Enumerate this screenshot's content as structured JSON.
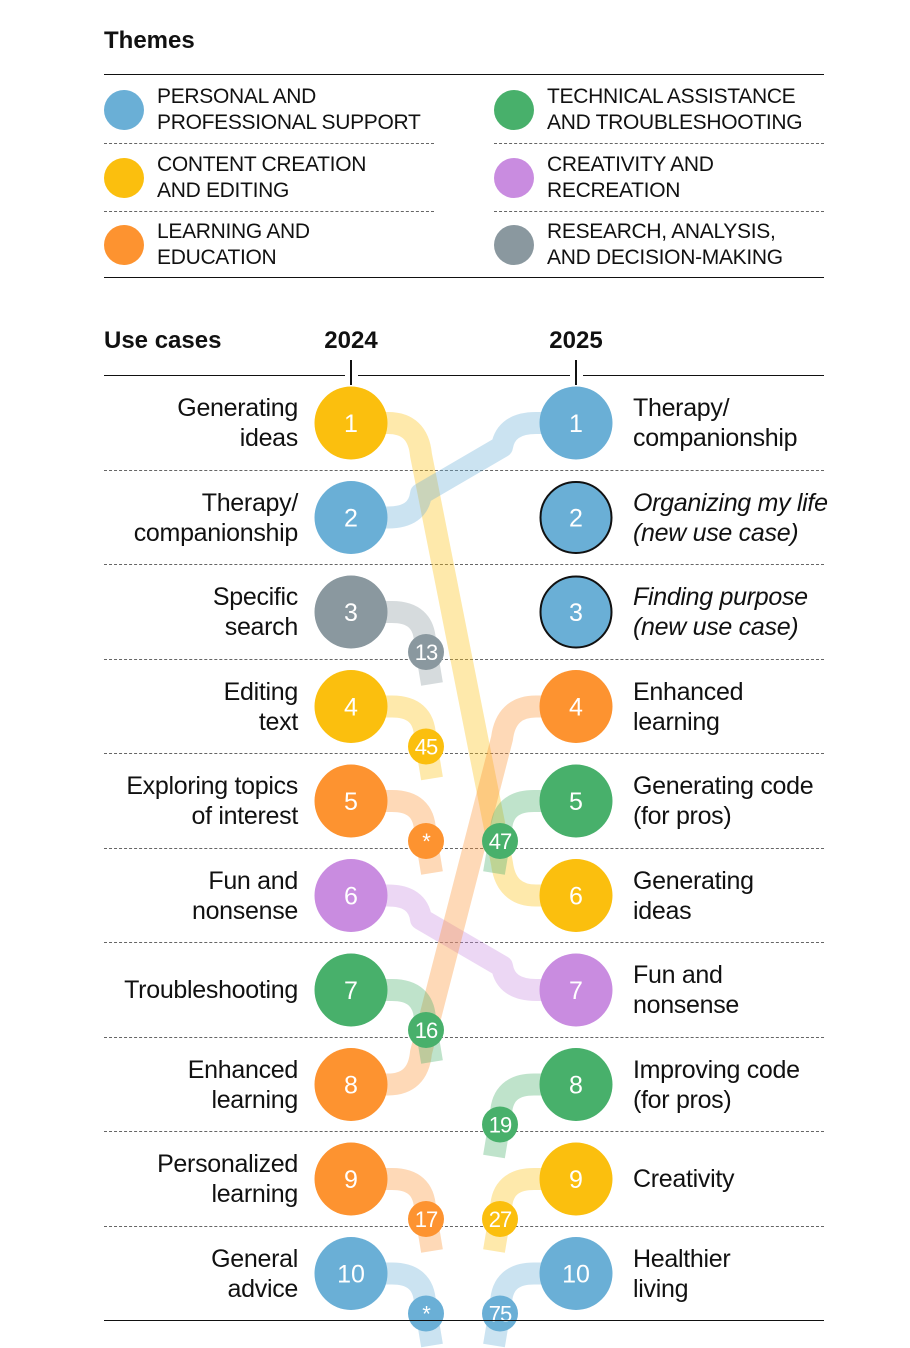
{
  "colors": {
    "blue": "#6aafd6",
    "yellow": "#fbbf0e",
    "orange": "#fd9330",
    "green": "#48b06b",
    "purple": "#c98ce0",
    "gray": "#8a989f"
  },
  "themes": {
    "title": "Themes",
    "items": [
      {
        "label": "Personal and\nprofessional support",
        "color": "blue"
      },
      {
        "label": "Technical assistance\nand troubleshooting",
        "color": "green"
      },
      {
        "label": "Content creation\nand editing",
        "color": "yellow"
      },
      {
        "label": "Creativity and\nrecreation",
        "color": "purple"
      },
      {
        "label": "Learning and\neducation",
        "color": "orange"
      },
      {
        "label": "Research, analysis,\nand decision-making",
        "color": "gray"
      }
    ]
  },
  "use_cases": {
    "title": "Use cases",
    "year_left": "2024",
    "year_right": "2025",
    "rows": [
      {
        "rank": "1",
        "left": "Generating\nideas",
        "left_color": "yellow",
        "right": "Therapy/\ncompanionship",
        "right_color": "blue",
        "right_new": false
      },
      {
        "rank": "2",
        "left": "Therapy/\ncompanionship",
        "left_color": "blue",
        "right": "Organizing my life\n(new use case)",
        "right_color": "blue",
        "right_new": true
      },
      {
        "rank": "3",
        "left": "Specific\nsearch",
        "left_color": "gray",
        "right": "Finding purpose\n(new use case)",
        "right_color": "blue",
        "right_new": true
      },
      {
        "rank": "4",
        "left": "Editing\ntext",
        "left_color": "yellow",
        "right": "Enhanced\nlearning",
        "right_color": "orange",
        "right_new": false
      },
      {
        "rank": "5",
        "left": "Exploring topics\nof interest",
        "left_color": "orange",
        "right": "Generating code\n(for pros)",
        "right_color": "green",
        "right_new": false
      },
      {
        "rank": "6",
        "left": "Fun and\nnonsense",
        "left_color": "purple",
        "right": "Generating\nideas",
        "right_color": "yellow",
        "right_new": false
      },
      {
        "rank": "7",
        "left": "Troubleshooting",
        "left_color": "green",
        "right": "Fun and\nnonsense",
        "right_color": "purple",
        "right_new": false
      },
      {
        "rank": "8",
        "left": "Enhanced\nlearning",
        "left_color": "orange",
        "right": "Improving code\n(for pros)",
        "right_color": "green",
        "right_new": false
      },
      {
        "rank": "9",
        "left": "Personalized\nlearning",
        "left_color": "orange",
        "right": "Creativity",
        "right_color": "yellow",
        "right_new": false
      },
      {
        "rank": "10",
        "left": "General\nadvice",
        "left_color": "blue",
        "right": "Healthier\nliving",
        "right_color": "blue",
        "right_new": false
      }
    ],
    "connections": [
      {
        "from_2024": 1,
        "to_2025": 6,
        "color": "yellow"
      },
      {
        "from_2024": 2,
        "to_2025": 1,
        "color": "blue"
      },
      {
        "from_2024": 6,
        "to_2025": 7,
        "color": "purple"
      },
      {
        "from_2024": 8,
        "to_2025": 4,
        "color": "orange"
      }
    ],
    "badges": [
      {
        "side": "2024",
        "rank": 3,
        "label": "13",
        "color": "gray"
      },
      {
        "side": "2024",
        "rank": 4,
        "label": "45",
        "color": "yellow"
      },
      {
        "side": "2024",
        "rank": 5,
        "label": "*",
        "color": "orange"
      },
      {
        "side": "2024",
        "rank": 7,
        "label": "16",
        "color": "green"
      },
      {
        "side": "2024",
        "rank": 9,
        "label": "17",
        "color": "orange"
      },
      {
        "side": "2024",
        "rank": 10,
        "label": "*",
        "color": "blue"
      },
      {
        "side": "2025",
        "rank": 5,
        "label": "47",
        "color": "green"
      },
      {
        "side": "2025",
        "rank": 8,
        "label": "19",
        "color": "green"
      },
      {
        "side": "2025",
        "rank": 9,
        "label": "27",
        "color": "yellow"
      },
      {
        "side": "2025",
        "rank": 10,
        "label": "75",
        "color": "blue"
      }
    ]
  }
}
